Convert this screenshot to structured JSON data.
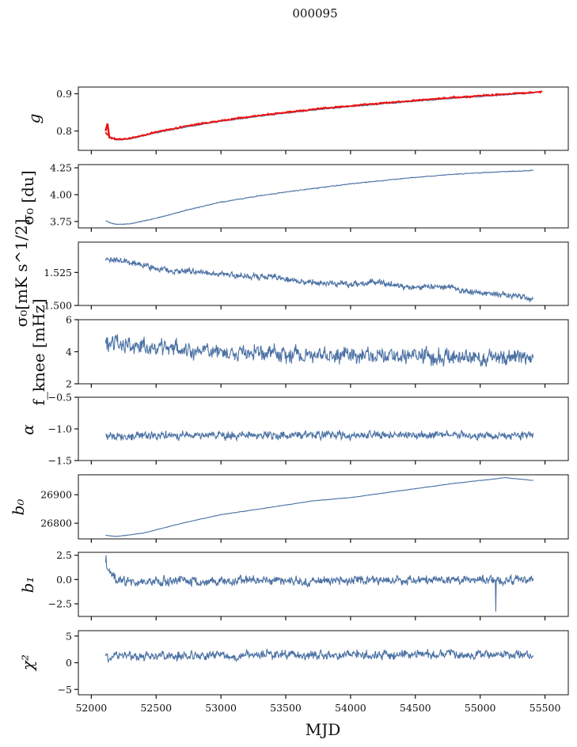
{
  "figure": {
    "suptitle": "000095",
    "xlabel": "MJD",
    "series_color": "#4c72a4",
    "overlay_color": "#ee1111"
  },
  "chart_data": [
    {
      "type": "line",
      "id": "g",
      "ylabel": "g",
      "ylim": [
        0.748,
        0.918
      ],
      "yticks": [
        0.8,
        0.9
      ],
      "ytick_labels": [
        "0.8",
        "0.9"
      ],
      "xlim": [
        51900,
        55680
      ],
      "series": [
        {
          "role": "main",
          "start_mjd": 52110,
          "end_mjd": 55410,
          "noise": 0.0015,
          "x": [
            52110,
            52150,
            52200,
            52300,
            52500,
            52750,
            53000,
            53300,
            53600,
            54000,
            54400,
            54800,
            55100,
            55410
          ],
          "y": [
            0.795,
            0.781,
            0.776,
            0.779,
            0.795,
            0.812,
            0.826,
            0.84,
            0.852,
            0.866,
            0.877,
            0.888,
            0.895,
            0.902
          ]
        },
        {
          "role": "overlay",
          "start_mjd": 52110,
          "end_mjd": 55480,
          "noise": 0.002,
          "spike": {
            "x": [
              52110,
              52125,
              52140
            ],
            "y": [
              0.8,
              0.82,
              0.78
            ]
          },
          "x": [
            52110,
            52150,
            52200,
            52300,
            52500,
            52750,
            53000,
            53300,
            53600,
            54000,
            54400,
            54800,
            55100,
            55480
          ],
          "y": [
            0.797,
            0.782,
            0.777,
            0.78,
            0.797,
            0.814,
            0.828,
            0.842,
            0.854,
            0.868,
            0.879,
            0.89,
            0.897,
            0.905
          ]
        }
      ]
    },
    {
      "type": "line",
      "id": "sigma0_du",
      "ylabel": "σ₀ [du]",
      "ylim": [
        3.69,
        4.28
      ],
      "yticks": [
        3.75,
        4.0,
        4.25
      ],
      "ytick_labels": [
        "3.75",
        "4.00",
        "4.25"
      ],
      "xlim": [
        51900,
        55680
      ],
      "series": [
        {
          "role": "main",
          "start_mjd": 52110,
          "end_mjd": 55410,
          "noise": 0.004,
          "x": [
            52110,
            52150,
            52200,
            52300,
            52500,
            52750,
            53000,
            53300,
            53600,
            54000,
            54400,
            54800,
            55100,
            55410
          ],
          "y": [
            3.755,
            3.735,
            3.722,
            3.728,
            3.78,
            3.86,
            3.93,
            3.99,
            4.04,
            4.1,
            4.15,
            4.19,
            4.21,
            4.225
          ]
        }
      ]
    },
    {
      "type": "line",
      "id": "sigma0_mk",
      "ylabel": "σ₀[mK s^1/2]",
      "ylim": [
        1.5,
        1.548
      ],
      "yticks": [
        1.5,
        1.525
      ],
      "ytick_labels": [
        "1.500",
        "1.525"
      ],
      "xlim": [
        51900,
        55680
      ],
      "series": [
        {
          "role": "main",
          "start_mjd": 52110,
          "end_mjd": 55410,
          "noise": 0.0025,
          "x": [
            52110,
            52300,
            52500,
            52800,
            53100,
            53400,
            53700,
            54000,
            54200,
            54400,
            54700,
            55000,
            55200,
            55410
          ],
          "y": [
            1.535,
            1.533,
            1.528,
            1.525,
            1.523,
            1.521,
            1.517,
            1.516,
            1.518,
            1.514,
            1.514,
            1.509,
            1.508,
            1.505
          ]
        }
      ]
    },
    {
      "type": "line",
      "id": "fknee",
      "ylabel": "f_knee [mHz]",
      "ylim": [
        2,
        6
      ],
      "yticks": [
        2,
        4,
        6
      ],
      "ytick_labels": [
        "2",
        "4",
        "6"
      ],
      "xlim": [
        51900,
        55680
      ],
      "series": [
        {
          "role": "main",
          "start_mjd": 52110,
          "end_mjd": 55410,
          "noise": 0.55,
          "x": [
            52110,
            52500,
            53000,
            53500,
            54000,
            54500,
            55000,
            55410
          ],
          "y": [
            4.5,
            4.3,
            4.0,
            3.9,
            3.8,
            3.7,
            3.6,
            3.6
          ]
        }
      ]
    },
    {
      "type": "line",
      "id": "alpha",
      "ylabel": "α",
      "ylim": [
        -1.5,
        -0.5
      ],
      "yticks": [
        -1.5,
        -1.0,
        -0.5
      ],
      "ytick_labels": [
        "−1.5",
        "−1.0",
        "−0.5"
      ],
      "xlim": [
        51900,
        55680
      ],
      "series": [
        {
          "role": "main",
          "start_mjd": 52110,
          "end_mjd": 55410,
          "noise": 0.07,
          "x": [
            52110,
            55410
          ],
          "y": [
            -1.1,
            -1.1
          ]
        }
      ]
    },
    {
      "type": "line",
      "id": "b0",
      "ylabel": "b₀",
      "ylim": [
        26745,
        26970
      ],
      "yticks": [
        26800,
        26900
      ],
      "ytick_labels": [
        "26800",
        "26900"
      ],
      "xlim": [
        51900,
        55680
      ],
      "series": [
        {
          "role": "main",
          "start_mjd": 52110,
          "end_mjd": 55410,
          "noise": 0.8,
          "x": [
            52110,
            52150,
            52200,
            52400,
            52700,
            53000,
            53300,
            53700,
            54000,
            54400,
            54800,
            55000,
            55200,
            55300,
            55410
          ],
          "y": [
            26758,
            26755,
            26754,
            26765,
            26800,
            26830,
            26850,
            26878,
            26890,
            26915,
            26940,
            26950,
            26960,
            26955,
            26950
          ]
        }
      ]
    },
    {
      "type": "line",
      "id": "b1",
      "ylabel": "b₁",
      "ylim": [
        -3.8,
        2.8
      ],
      "yticks": [
        -2.5,
        0.0,
        2.5
      ],
      "ytick_labels": [
        "−2.5",
        "0.0",
        "2.5"
      ],
      "xlim": [
        51900,
        55680
      ],
      "series": [
        {
          "role": "main",
          "start_mjd": 52110,
          "end_mjd": 55410,
          "noise": 0.5,
          "spikes": [
            {
              "x": 52115,
              "y": 2.5
            },
            {
              "x": 55120,
              "y": -3.3
            }
          ],
          "x": [
            52110,
            52200,
            55410
          ],
          "y": [
            1.5,
            -0.2,
            0.0
          ]
        }
      ]
    },
    {
      "type": "line",
      "id": "chi2",
      "ylabel": "χ²",
      "ylim": [
        -6,
        6
      ],
      "yticks": [
        -5,
        0,
        5
      ],
      "ytick_labels": [
        "−5",
        "0",
        "5"
      ],
      "xlim": [
        51900,
        55680
      ],
      "series": [
        {
          "role": "main",
          "start_mjd": 52110,
          "end_mjd": 55410,
          "noise": 0.9,
          "x": [
            52110,
            55410
          ],
          "y": [
            1.3,
            1.6
          ]
        }
      ]
    }
  ],
  "xaxis": {
    "ticks": [
      52000,
      52500,
      53000,
      53500,
      54000,
      54500,
      55000,
      55500
    ],
    "tick_labels": [
      "52000",
      "52500",
      "53000",
      "53500",
      "54000",
      "54500",
      "55000",
      "55500"
    ]
  }
}
